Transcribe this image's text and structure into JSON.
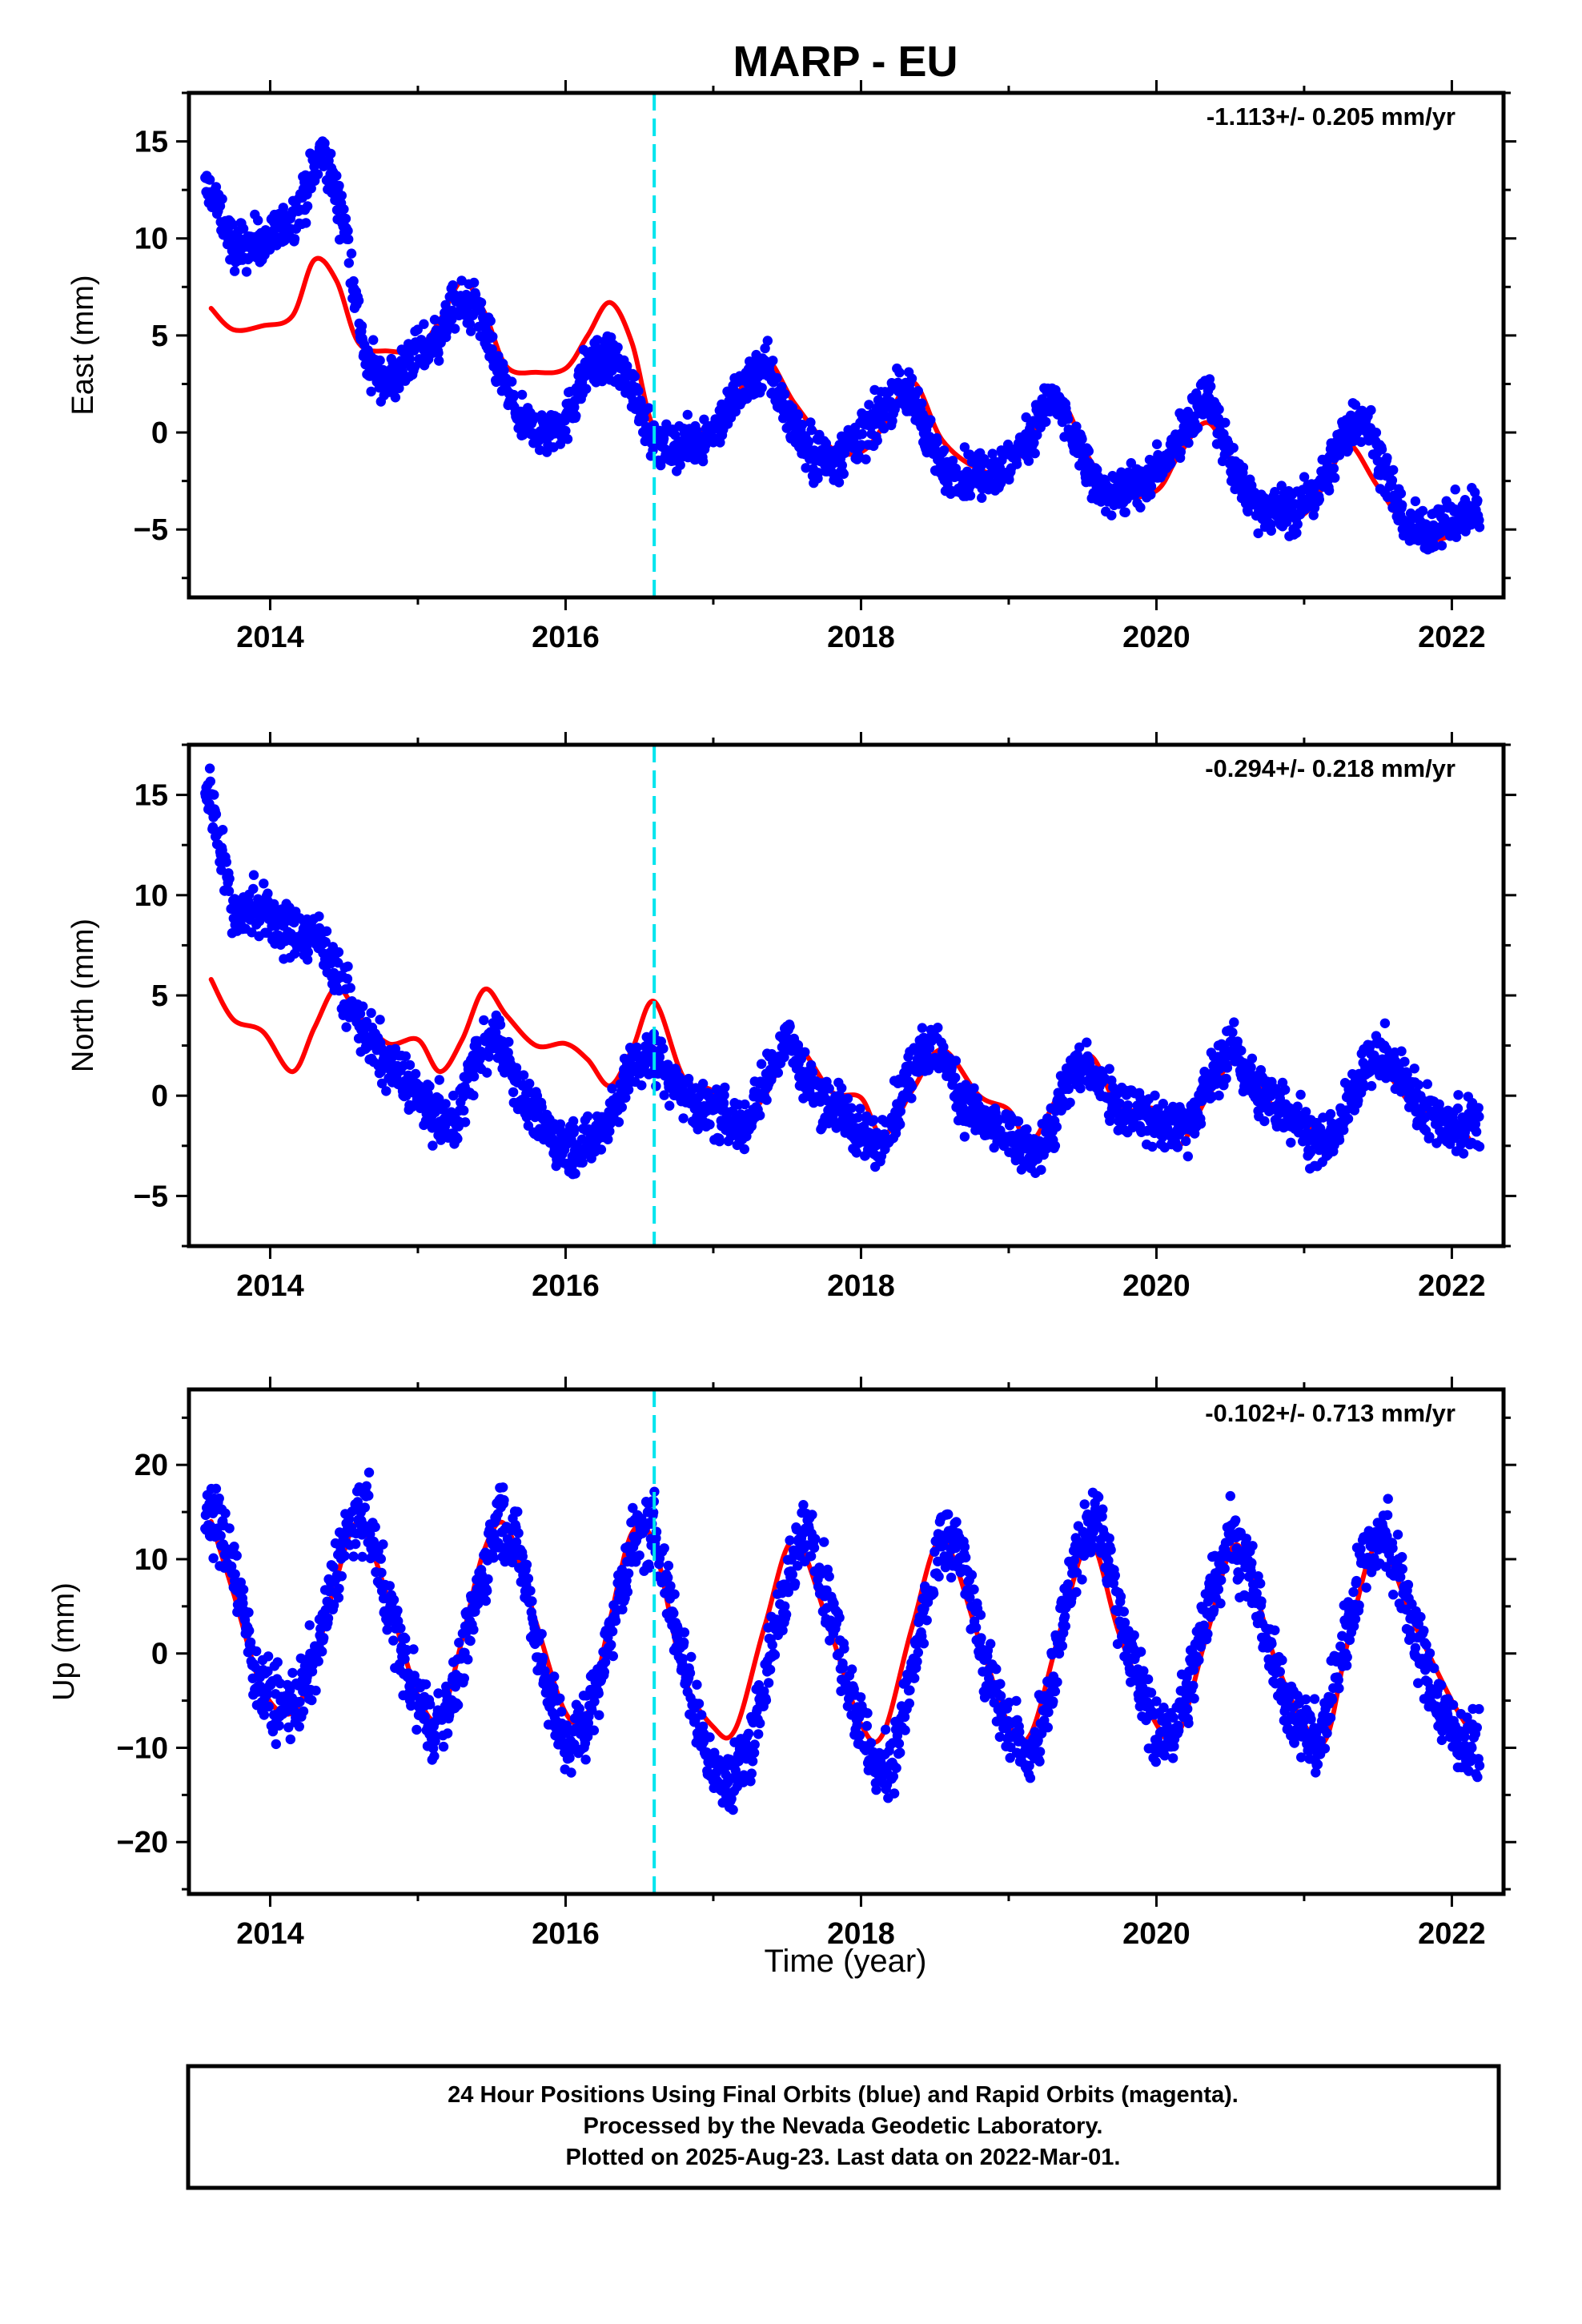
{
  "title": "MARP - EU",
  "x_axis_label": "Time (year)",
  "colors": {
    "points": "#0000ff",
    "fit": "#ff0000",
    "offset_line": "#00e5ee",
    "axis": "#000000"
  },
  "footer": {
    "line1": "24 Hour Positions Using Final Orbits (blue) and Rapid Orbits (magenta).",
    "line2": "Processed by the Nevada Geodetic Laboratory.",
    "line3": "Plotted on 2025-Aug-23. Last data on 2022-Mar-01."
  },
  "chart_data": [
    {
      "type": "scatter",
      "ylabel": "East (mm)",
      "rate_label": "-1.113+/- 0.205 mm/yr",
      "xlim": [
        2013.45,
        2022.35
      ],
      "ylim": [
        -8.5,
        17.5
      ],
      "xticks": [
        2014,
        2016,
        2018,
        2020,
        2022
      ],
      "xtick_labels": [
        "2014",
        "2016",
        "2018",
        "2020",
        "2022"
      ],
      "yticks": [
        -5,
        0,
        5,
        10,
        15
      ],
      "ytick_labels": [
        "−5",
        "0",
        "5",
        "10",
        "15"
      ],
      "offset_epoch": 2016.6,
      "series": [
        {
          "role": "daily positions",
          "color": "#0000ff",
          "x": [
            2013.6,
            2013.75,
            2013.9,
            2014.05,
            2014.2,
            2014.35,
            2014.5,
            2014.65,
            2014.8,
            2014.95,
            2015.1,
            2015.25,
            2015.4,
            2015.55,
            2015.7,
            2015.85,
            2016.0,
            2016.15,
            2016.3,
            2016.45,
            2016.6,
            2016.75,
            2016.9,
            2017.05,
            2017.2,
            2017.35,
            2017.5,
            2017.65,
            2017.8,
            2017.95,
            2018.1,
            2018.25,
            2018.4,
            2018.55,
            2018.7,
            2018.85,
            2019.0,
            2019.15,
            2019.3,
            2019.45,
            2019.6,
            2019.75,
            2019.9,
            2020.05,
            2020.2,
            2020.35,
            2020.5,
            2020.65,
            2020.8,
            2020.95,
            2021.1,
            2021.25,
            2021.4,
            2021.55,
            2021.7,
            2021.85,
            2022.0,
            2022.15
          ],
          "y": [
            12.5,
            9.5,
            9.8,
            10.2,
            11.5,
            14.5,
            11,
            3.5,
            2.5,
            3.8,
            4.5,
            6.5,
            6.5,
            3,
            0.5,
            0,
            0.5,
            3.5,
            3.8,
            2.5,
            -0.5,
            -0.8,
            -0.5,
            0.5,
            2.5,
            3.5,
            1,
            -1,
            -1.5,
            -0.5,
            0.5,
            2.5,
            1,
            -2,
            -2.2,
            -2,
            -1.8,
            0,
            1.8,
            -0.5,
            -3,
            -3,
            -2.8,
            -1.5,
            0.5,
            2,
            -1.5,
            -3.5,
            -4,
            -4,
            -3,
            -0.5,
            1,
            -2,
            -5,
            -5,
            -4.5,
            -4
          ]
        },
        {
          "role": "seasonal fit",
          "color": "#ff0000",
          "x": [
            2013.6,
            2013.75,
            2013.95,
            2014.15,
            2014.3,
            2014.45,
            2014.6,
            2014.8,
            2015.0,
            2015.15,
            2015.3,
            2015.45,
            2015.6,
            2015.8,
            2016.0,
            2016.15,
            2016.3,
            2016.45,
            2016.6,
            2016.8,
            2017.0,
            2017.15,
            2017.35,
            2017.55,
            2017.8,
            2018.0,
            2018.15,
            2018.35,
            2018.55,
            2018.8,
            2019.0,
            2019.15,
            2019.35,
            2019.55,
            2019.75,
            2020.0,
            2020.15,
            2020.35,
            2020.55,
            2020.8,
            2021.0,
            2021.15,
            2021.3,
            2021.5,
            2021.75,
            2022.0,
            2022.15
          ],
          "y": [
            6.4,
            5.3,
            5.5,
            6,
            8.9,
            7.8,
            4.6,
            4.2,
            4.3,
            5.8,
            7.8,
            6.2,
            3.4,
            3.1,
            3.3,
            5,
            6.7,
            4.6,
            0.2,
            0.3,
            0.2,
            1.8,
            3.8,
            1.5,
            -0.8,
            -1,
            0.3,
            2.6,
            -0.4,
            -1.9,
            -2,
            -0.2,
            1.6,
            -1.4,
            -3.2,
            -3,
            -1.2,
            0.5,
            -2.1,
            -4.3,
            -4.2,
            -2.5,
            -0.6,
            -2.8,
            -5.3,
            -5.3,
            -4
          ]
        }
      ]
    },
    {
      "type": "scatter",
      "ylabel": "North (mm)",
      "rate_label": "-0.294+/- 0.218 mm/yr",
      "xlim": [
        2013.45,
        2022.35
      ],
      "ylim": [
        -7.5,
        17.5
      ],
      "xticks": [
        2014,
        2016,
        2018,
        2020,
        2022
      ],
      "xtick_labels": [
        "2014",
        "2016",
        "2018",
        "2020",
        "2022"
      ],
      "yticks": [
        -5,
        0,
        5,
        10,
        15
      ],
      "ytick_labels": [
        "−5",
        "0",
        "5",
        "10",
        "15"
      ],
      "offset_epoch": 2016.6,
      "series": [
        {
          "role": "daily positions",
          "color": "#0000ff",
          "x": [
            2013.6,
            2013.75,
            2013.9,
            2014.05,
            2014.2,
            2014.35,
            2014.5,
            2014.65,
            2014.8,
            2014.95,
            2015.1,
            2015.25,
            2015.4,
            2015.55,
            2015.7,
            2015.85,
            2016.0,
            2016.15,
            2016.3,
            2016.45,
            2016.6,
            2016.75,
            2016.9,
            2017.05,
            2017.2,
            2017.35,
            2017.5,
            2017.65,
            2017.8,
            2017.95,
            2018.1,
            2018.25,
            2018.4,
            2018.55,
            2018.7,
            2018.85,
            2019.0,
            2019.15,
            2019.3,
            2019.45,
            2019.6,
            2019.75,
            2019.9,
            2020.05,
            2020.2,
            2020.35,
            2020.5,
            2020.65,
            2020.8,
            2020.95,
            2021.1,
            2021.25,
            2021.4,
            2021.55,
            2021.7,
            2021.85,
            2022.0,
            2022.15
          ],
          "y": [
            15,
            9,
            9.5,
            8.5,
            8,
            8,
            5,
            3,
            1.5,
            0.5,
            -1,
            -1.5,
            2,
            3,
            0,
            -1.5,
            -2.5,
            -2.5,
            -1,
            1.5,
            2,
            0.5,
            -0.5,
            -1,
            -1.5,
            0.5,
            3,
            0.5,
            -0.5,
            -1.5,
            -2.5,
            -0.5,
            2.5,
            2,
            -0.5,
            -1.5,
            -2,
            -3,
            -1.5,
            1.5,
            1,
            -0.5,
            -1,
            -1.5,
            -1.5,
            0.5,
            2.5,
            0.5,
            -0.5,
            -1,
            -2.5,
            -1.5,
            1.5,
            2,
            0.5,
            -1,
            -1.5,
            -1.5
          ]
        },
        {
          "role": "seasonal fit",
          "color": "#ff0000",
          "x": [
            2013.6,
            2013.75,
            2013.95,
            2014.15,
            2014.3,
            2014.45,
            2014.6,
            2014.8,
            2015.0,
            2015.15,
            2015.3,
            2015.45,
            2015.6,
            2015.8,
            2016.0,
            2016.15,
            2016.3,
            2016.45,
            2016.6,
            2016.8,
            2017.0,
            2017.15,
            2017.35,
            2017.55,
            2017.8,
            2018.0,
            2018.15,
            2018.35,
            2018.55,
            2018.8,
            2019.0,
            2019.15,
            2019.35,
            2019.55,
            2019.75,
            2020.0,
            2020.15,
            2020.35,
            2020.55,
            2020.8,
            2021.0,
            2021.15,
            2021.3,
            2021.5,
            2021.75,
            2022.0,
            2022.15
          ],
          "y": [
            5.8,
            3.8,
            3.2,
            1.2,
            3.4,
            5.4,
            4,
            2.6,
            2.8,
            1.2,
            2.8,
            5.3,
            4,
            2.5,
            2.6,
            1.8,
            0.5,
            2.3,
            4.7,
            0.9,
            0.2,
            -1.6,
            0,
            2.5,
            0.2,
            -0.1,
            -2,
            0.3,
            2.3,
            0,
            -0.7,
            -2.3,
            0.2,
            2,
            -0.6,
            -0.7,
            -2.5,
            0,
            1.7,
            -0.6,
            -1.2,
            -2.9,
            -0.6,
            1.4,
            -0.6,
            -1.2,
            -2.5
          ]
        }
      ]
    },
    {
      "type": "scatter",
      "ylabel": "Up (mm)",
      "rate_label": "-0.102+/- 0.713 mm/yr",
      "xlabel": "Time (year)",
      "xlim": [
        2013.45,
        2022.35
      ],
      "ylim": [
        -25.5,
        28
      ],
      "xticks": [
        2014,
        2016,
        2018,
        2020,
        2022
      ],
      "xtick_labels": [
        "2014",
        "2016",
        "2018",
        "2020",
        "2022"
      ],
      "yticks": [
        -20,
        -10,
        0,
        10,
        20
      ],
      "ytick_labels": [
        "−20",
        "−10",
        "0",
        "10",
        "20"
      ],
      "offset_epoch": 2016.6,
      "series": [
        {
          "role": "daily positions",
          "color": "#0000ff",
          "x": [
            2013.6,
            2013.75,
            2013.9,
            2014.05,
            2014.2,
            2014.35,
            2014.5,
            2014.65,
            2014.8,
            2014.95,
            2015.1,
            2015.25,
            2015.4,
            2015.55,
            2015.7,
            2015.85,
            2016.0,
            2016.15,
            2016.3,
            2016.45,
            2016.6,
            2016.75,
            2016.9,
            2017.05,
            2017.2,
            2017.35,
            2017.5,
            2017.65,
            2017.8,
            2017.95,
            2018.1,
            2018.25,
            2018.4,
            2018.55,
            2018.7,
            2018.85,
            2019.0,
            2019.15,
            2019.3,
            2019.45,
            2019.6,
            2019.75,
            2019.9,
            2020.05,
            2020.2,
            2020.35,
            2020.5,
            2020.65,
            2020.8,
            2020.95,
            2021.1,
            2021.25,
            2021.4,
            2021.55,
            2021.7,
            2021.85,
            2022.0,
            2022.15
          ],
          "y": [
            15,
            10,
            -2,
            -6,
            -5,
            2,
            12,
            15,
            5,
            -3,
            -8,
            -4,
            6,
            15,
            10,
            -2,
            -10,
            -7,
            2,
            12,
            13,
            3,
            -8,
            -14,
            -12,
            -3,
            8,
            14,
            4,
            -5,
            -13,
            -10,
            2,
            12,
            10,
            -2,
            -8,
            -11,
            -2,
            10,
            15,
            5,
            -4,
            -10,
            -5,
            5,
            13,
            8,
            -2,
            -7,
            -10,
            0,
            10,
            13,
            5,
            -3,
            -8,
            -10
          ]
        },
        {
          "role": "seasonal fit",
          "color": "#ff0000",
          "x": [
            2013.6,
            2013.75,
            2013.95,
            2014.15,
            2014.3,
            2014.45,
            2014.6,
            2014.8,
            2015.0,
            2015.15,
            2015.3,
            2015.45,
            2015.6,
            2015.8,
            2016.0,
            2016.15,
            2016.3,
            2016.45,
            2016.6,
            2016.8,
            2017.0,
            2017.15,
            2017.35,
            2017.55,
            2017.8,
            2018.0,
            2018.15,
            2018.35,
            2018.55,
            2018.8,
            2019.0,
            2019.15,
            2019.35,
            2019.55,
            2019.75,
            2020.0,
            2020.15,
            2020.35,
            2020.55,
            2020.8,
            2021.0,
            2021.15,
            2021.3,
            2021.5,
            2021.75,
            2022.0,
            2022.15
          ],
          "y": [
            14,
            6.5,
            -3.8,
            -6.3,
            -0.8,
            8,
            13.8,
            5.7,
            -4.5,
            -6.8,
            1.5,
            11,
            13.5,
            3.3,
            -6.3,
            -6.3,
            3.5,
            12.8,
            11.5,
            -2.4,
            -7.8,
            -8,
            3,
            12,
            2,
            -7.5,
            -8.5,
            3,
            12,
            1.5,
            -7.5,
            -8.5,
            2.5,
            11.8,
            2,
            -7.5,
            -8.5,
            2.5,
            11.5,
            -0.5,
            -7.5,
            -9,
            1.5,
            11.5,
            3,
            -5,
            -8.8
          ]
        }
      ]
    }
  ]
}
